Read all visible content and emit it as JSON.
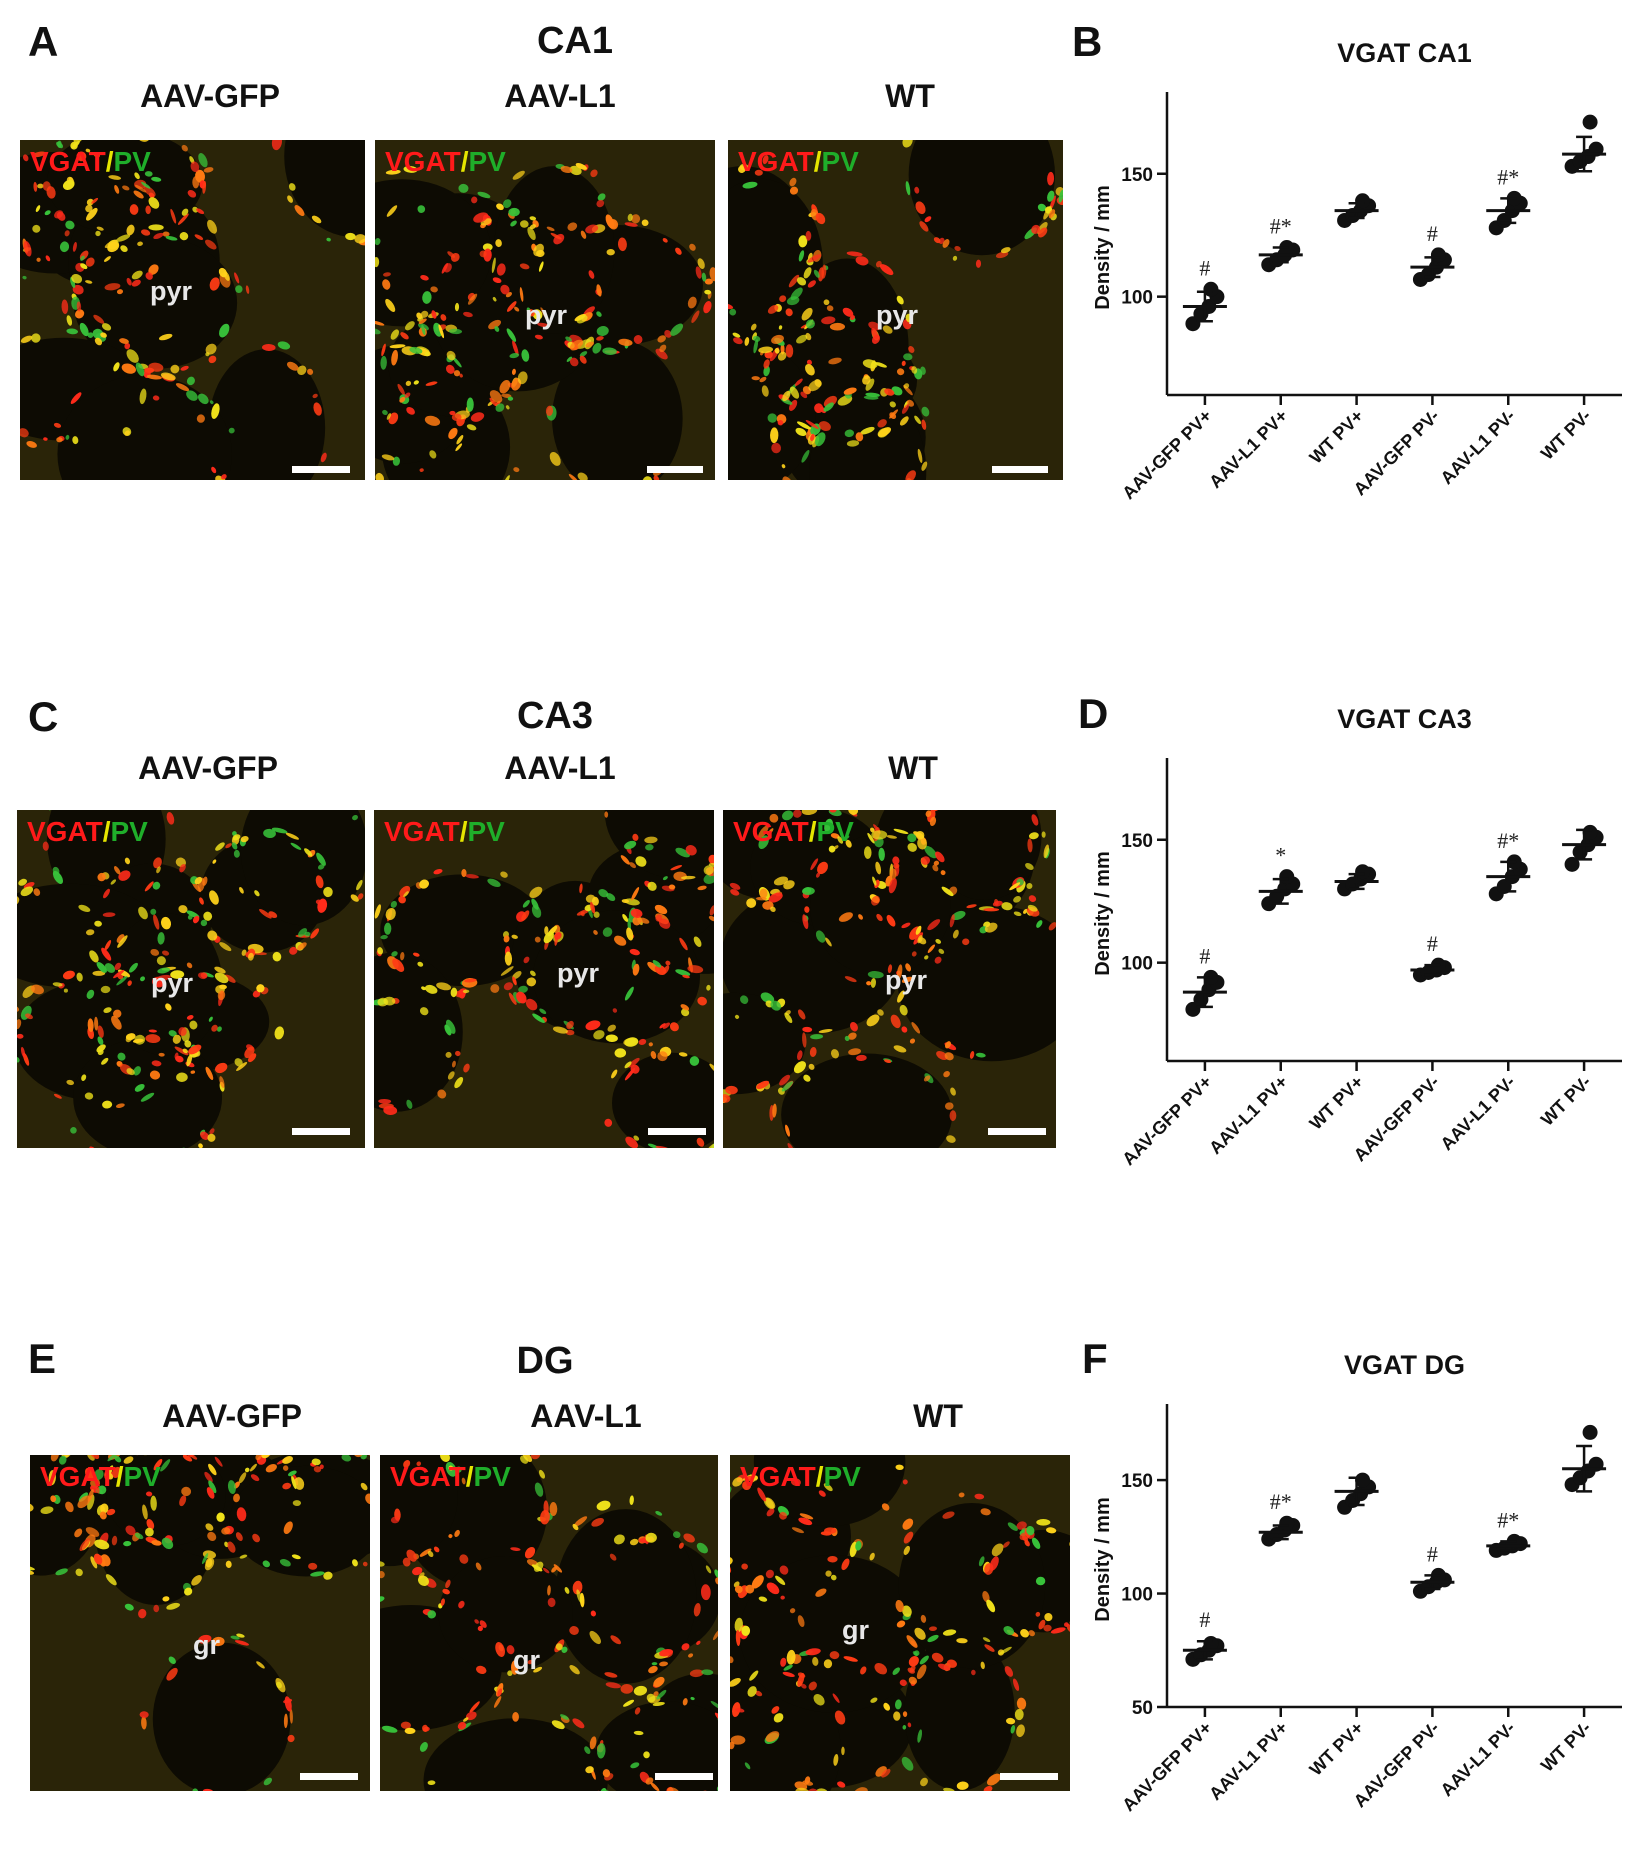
{
  "panels": [
    {
      "region": "CA1",
      "letter_img": "A",
      "letter_chart": "B",
      "columns": [
        "AAV-GFP",
        "AAV-L1",
        "WT"
      ],
      "cell_label": "pyr",
      "stain": {
        "a": "VGAT",
        "sep": "/",
        "b": "PV"
      }
    },
    {
      "region": "CA3",
      "letter_img": "C",
      "letter_chart": "D",
      "columns": [
        "AAV-GFP",
        "AAV-L1",
        "WT"
      ],
      "cell_label": "pyr",
      "stain": {
        "a": "VGAT",
        "sep": "/",
        "b": "PV"
      }
    },
    {
      "region": "DG",
      "letter_img": "E",
      "letter_chart": "F",
      "columns": [
        "AAV-GFP",
        "AAV-L1",
        "WT"
      ],
      "cell_label": "gr",
      "stain": {
        "a": "VGAT",
        "sep": "/",
        "b": "PV"
      }
    }
  ],
  "chart_data": [
    {
      "type": "scatter",
      "title": "VGAT CA1",
      "ylabel": "Density / mm",
      "categories": [
        "AAV-GFP PV+",
        "AAV-L1 PV+",
        "WT PV+",
        "AAV-GFP PV-",
        "AAV-L1 PV-",
        "WT PV-"
      ],
      "ylim": [
        60,
        180
      ],
      "yticks": [
        100,
        150
      ],
      "points": [
        [
          89,
          93,
          96,
          100,
          103
        ],
        [
          113,
          115,
          117,
          119,
          120
        ],
        [
          131,
          133,
          135,
          137,
          139
        ],
        [
          107,
          109,
          112,
          115,
          117
        ],
        [
          128,
          131,
          135,
          138,
          140
        ],
        [
          153,
          155,
          157,
          160,
          171
        ]
      ],
      "means": [
        96,
        117,
        135,
        112,
        135,
        158
      ],
      "sd": [
        6,
        3,
        3,
        4,
        5,
        7
      ],
      "annotations": [
        "#",
        "#*",
        "",
        "#",
        "#*",
        ""
      ]
    },
    {
      "type": "scatter",
      "title": "VGAT CA3",
      "ylabel": "Density / mm",
      "categories": [
        "AAV-GFP PV+",
        "AAV-L1 PV+",
        "WT PV+",
        "AAV-GFP PV-",
        "AAV-L1 PV-",
        "WT PV-"
      ],
      "ylim": [
        60,
        180
      ],
      "yticks": [
        100,
        150
      ],
      "points": [
        [
          81,
          85,
          89,
          92,
          94
        ],
        [
          124,
          127,
          130,
          132,
          135
        ],
        [
          130,
          132,
          134,
          136,
          137
        ],
        [
          95,
          96,
          97,
          98,
          99
        ],
        [
          128,
          131,
          135,
          138,
          141
        ],
        [
          140,
          145,
          148,
          151,
          153
        ]
      ],
      "means": [
        88,
        129,
        133,
        97,
        135,
        148
      ],
      "sd": [
        6,
        5,
        3,
        2,
        6,
        6
      ],
      "annotations": [
        "#",
        "*",
        "",
        "#",
        "#*",
        ""
      ]
    },
    {
      "type": "scatter",
      "title": "VGAT DG",
      "ylabel": "Density / mm",
      "categories": [
        "AAV-GFP PV+",
        "AAV-L1 PV+",
        "WT PV+",
        "AAV-GFP PV-",
        "AAV-L1 PV-",
        "WT PV-"
      ],
      "ylim": [
        50,
        180
      ],
      "yticks": [
        50,
        100,
        150
      ],
      "points": [
        [
          71,
          73,
          75,
          77,
          78
        ],
        [
          124,
          126,
          128,
          130,
          131
        ],
        [
          138,
          141,
          144,
          147,
          150
        ],
        [
          101,
          103,
          105,
          106,
          108
        ],
        [
          119,
          120,
          121,
          122,
          123
        ],
        [
          148,
          151,
          154,
          157,
          171
        ]
      ],
      "means": [
        75,
        127,
        145,
        105,
        121,
        155
      ],
      "sd": [
        4,
        3,
        6,
        3,
        2,
        10
      ],
      "annotations": [
        "#",
        "#*",
        "",
        "#",
        "#*",
        ""
      ]
    }
  ]
}
